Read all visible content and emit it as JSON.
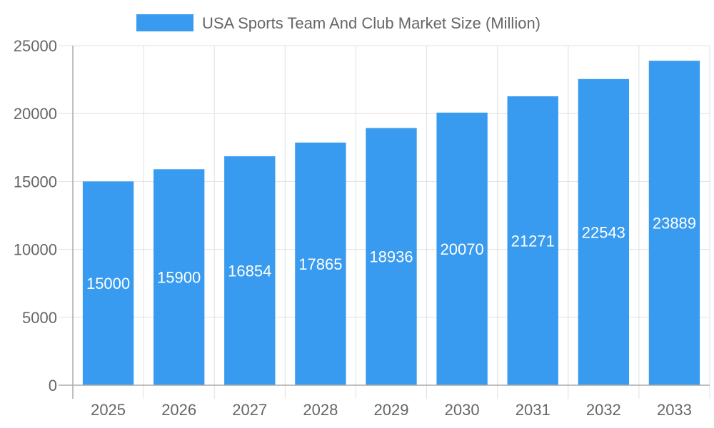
{
  "chart_data": {
    "type": "bar",
    "categories": [
      "2025",
      "2026",
      "2027",
      "2028",
      "2029",
      "2030",
      "2031",
      "2032",
      "2033"
    ],
    "series": [
      {
        "name": "USA Sports Team And Club Market Size (Million)",
        "values": [
          15000,
          15900,
          16854,
          17865,
          18936,
          20070,
          21271,
          22543,
          23889
        ]
      }
    ],
    "ylim": [
      0,
      25000
    ],
    "yticks": [
      0,
      5000,
      10000,
      15000,
      20000,
      25000
    ],
    "grid": true,
    "legend": "top",
    "data_labels": true,
    "colors": {
      "bar": "#389bef",
      "grid": "#e0e0e0",
      "axis": "#aaaaaa",
      "text": "#666666"
    }
  }
}
